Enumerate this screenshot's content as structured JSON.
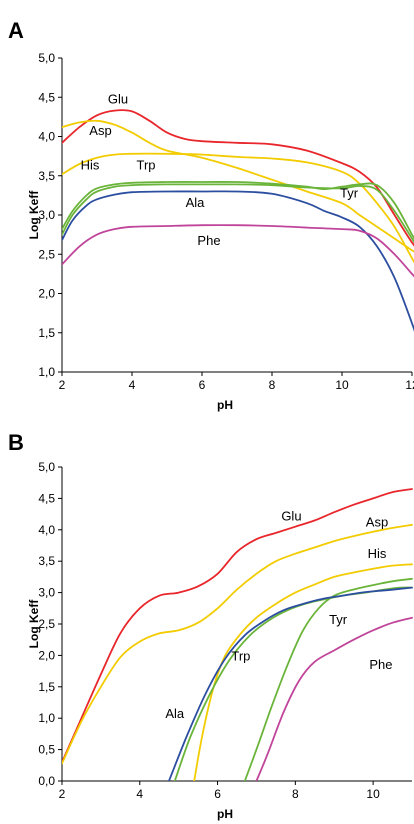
{
  "colors": {
    "red": "#e8262b",
    "yellow": "#f2cc00",
    "green": "#6ab43a",
    "blue": "#2c4ea0",
    "magenta": "#c0459a",
    "axis": "#000000"
  },
  "chart_data": [
    {
      "panel": "A",
      "type": "line",
      "xlabel": "pH",
      "ylabel": "Log Keff",
      "xlim": [
        2,
        12
      ],
      "ylim": [
        1.0,
        5.0
      ],
      "x_ticks": [
        "2",
        "4",
        "6",
        "8",
        "10",
        "12"
      ],
      "y_ticks": [
        "1,0",
        "1,5",
        "2,0",
        "2,5",
        "3,0",
        "3,5",
        "4,0",
        "4,5",
        "5,0"
      ],
      "series": [
        {
          "name": "Glu",
          "color": "red",
          "points": [
            [
              2,
              3.92
            ],
            [
              2.5,
              4.12
            ],
            [
              3,
              4.27
            ],
            [
              3.5,
              4.33
            ],
            [
              4,
              4.32
            ],
            [
              4.5,
              4.2
            ],
            [
              5,
              4.05
            ],
            [
              5.5,
              3.97
            ],
            [
              6,
              3.94
            ],
            [
              7,
              3.92
            ],
            [
              8,
              3.9
            ],
            [
              9,
              3.82
            ],
            [
              10,
              3.66
            ],
            [
              10.5,
              3.55
            ],
            [
              11,
              3.35
            ],
            [
              11.5,
              3.0
            ],
            [
              12,
              2.65
            ],
            [
              12.2,
              2.55
            ]
          ]
        },
        {
          "name": "Asp",
          "color": "yellow",
          "points": [
            [
              2,
              4.12
            ],
            [
              2.5,
              4.18
            ],
            [
              3,
              4.2
            ],
            [
              3.5,
              4.15
            ],
            [
              4,
              4.05
            ],
            [
              4.5,
              3.92
            ],
            [
              5,
              3.82
            ],
            [
              6,
              3.73
            ],
            [
              7,
              3.6
            ],
            [
              8,
              3.45
            ],
            [
              9,
              3.3
            ],
            [
              10,
              3.15
            ],
            [
              10.5,
              3.0
            ],
            [
              11,
              2.85
            ],
            [
              11.5,
              2.7
            ],
            [
              12,
              2.55
            ],
            [
              12.2,
              2.5
            ]
          ]
        },
        {
          "name": "His",
          "color": "yellow",
          "points": [
            [
              2,
              3.52
            ],
            [
              2.5,
              3.65
            ],
            [
              3,
              3.73
            ],
            [
              3.5,
              3.77
            ],
            [
              4,
              3.78
            ],
            [
              5,
              3.78
            ],
            [
              6,
              3.77
            ],
            [
              7,
              3.74
            ],
            [
              8,
              3.72
            ],
            [
              9,
              3.67
            ],
            [
              10,
              3.55
            ],
            [
              10.5,
              3.4
            ],
            [
              11,
              3.15
            ],
            [
              11.5,
              2.85
            ],
            [
              12,
              2.45
            ],
            [
              12.2,
              2.3
            ]
          ]
        },
        {
          "name": "Trp",
          "color": "green",
          "points": [
            [
              2,
              2.82
            ],
            [
              2.3,
              3.05
            ],
            [
              2.7,
              3.25
            ],
            [
              3,
              3.34
            ],
            [
              3.5,
              3.39
            ],
            [
              4,
              3.41
            ],
            [
              5,
              3.42
            ],
            [
              6,
              3.42
            ],
            [
              7,
              3.42
            ],
            [
              8,
              3.4
            ],
            [
              9,
              3.36
            ],
            [
              9.5,
              3.33
            ],
            [
              10,
              3.36
            ],
            [
              10.5,
              3.39
            ],
            [
              11,
              3.38
            ],
            [
              11.5,
              3.15
            ],
            [
              12,
              2.75
            ],
            [
              12.2,
              2.6
            ]
          ]
        },
        {
          "name": "Tyr",
          "color": "green",
          "points": [
            [
              2,
              2.75
            ],
            [
              2.3,
              3.0
            ],
            [
              2.7,
              3.2
            ],
            [
              3,
              3.3
            ],
            [
              3.5,
              3.36
            ],
            [
              4,
              3.38
            ],
            [
              5,
              3.39
            ],
            [
              6,
              3.39
            ],
            [
              7,
              3.39
            ],
            [
              8,
              3.38
            ],
            [
              9,
              3.35
            ],
            [
              10,
              3.34
            ],
            [
              10.5,
              3.37
            ],
            [
              11,
              3.32
            ],
            [
              11.5,
              3.05
            ],
            [
              12,
              2.7
            ],
            [
              12.2,
              2.55
            ]
          ]
        },
        {
          "name": "Ala",
          "color": "blue",
          "points": [
            [
              2,
              2.68
            ],
            [
              2.3,
              2.93
            ],
            [
              2.7,
              3.12
            ],
            [
              3,
              3.2
            ],
            [
              3.5,
              3.26
            ],
            [
              4,
              3.29
            ],
            [
              5,
              3.3
            ],
            [
              6,
              3.3
            ],
            [
              7,
              3.3
            ],
            [
              8,
              3.27
            ],
            [
              9,
              3.15
            ],
            [
              9.5,
              3.05
            ],
            [
              10,
              2.97
            ],
            [
              10.5,
              2.85
            ],
            [
              11,
              2.6
            ],
            [
              11.5,
              2.2
            ],
            [
              12,
              1.62
            ],
            [
              12.2,
              1.35
            ]
          ]
        },
        {
          "name": "Phe",
          "color": "magenta",
          "points": [
            [
              2,
              2.37
            ],
            [
              2.5,
              2.6
            ],
            [
              3,
              2.75
            ],
            [
              3.5,
              2.82
            ],
            [
              4,
              2.85
            ],
            [
              5,
              2.86
            ],
            [
              6,
              2.87
            ],
            [
              7,
              2.87
            ],
            [
              8,
              2.86
            ],
            [
              9,
              2.84
            ],
            [
              10,
              2.82
            ],
            [
              10.5,
              2.8
            ],
            [
              11,
              2.7
            ],
            [
              11.5,
              2.5
            ],
            [
              12,
              2.25
            ],
            [
              12.2,
              2.15
            ]
          ]
        }
      ],
      "labels": [
        {
          "text": "Glu",
          "x": 3.6,
          "y": 4.42
        },
        {
          "text": "Asp",
          "x": 3.1,
          "y": 4.02
        },
        {
          "text": "His",
          "x": 2.8,
          "y": 3.58
        },
        {
          "text": "Trp",
          "x": 4.4,
          "y": 3.58
        },
        {
          "text": "Tyr",
          "x": 10.2,
          "y": 3.22
        },
        {
          "text": "Ala",
          "x": 5.8,
          "y": 3.1
        },
        {
          "text": "Phe",
          "x": 6.2,
          "y": 2.62
        }
      ]
    },
    {
      "panel": "B",
      "type": "line",
      "xlabel": "pH",
      "ylabel": "Log Keff",
      "xlim": [
        2,
        11
      ],
      "ylim": [
        0.0,
        5.0
      ],
      "x_ticks": [
        "2",
        "4",
        "6",
        "8",
        "10"
      ],
      "y_ticks": [
        "0,0",
        "0,5",
        "1,0",
        "1,5",
        "2,0",
        "2,5",
        "3,0",
        "3,5",
        "4,0",
        "4,5",
        "5,0"
      ],
      "series": [
        {
          "name": "Glu",
          "color": "red",
          "points": [
            [
              2,
              0.3
            ],
            [
              2.5,
              1.0
            ],
            [
              3,
              1.7
            ],
            [
              3.5,
              2.35
            ],
            [
              4,
              2.75
            ],
            [
              4.5,
              2.95
            ],
            [
              5,
              3.0
            ],
            [
              5.5,
              3.1
            ],
            [
              6,
              3.3
            ],
            [
              6.5,
              3.65
            ],
            [
              7,
              3.85
            ],
            [
              7.5,
              3.95
            ],
            [
              8,
              4.05
            ],
            [
              8.5,
              4.15
            ],
            [
              9,
              4.28
            ],
            [
              9.5,
              4.4
            ],
            [
              10,
              4.5
            ],
            [
              10.5,
              4.6
            ],
            [
              11,
              4.65
            ]
          ]
        },
        {
          "name": "Asp",
          "color": "yellow",
          "points": [
            [
              2,
              0.28
            ],
            [
              2.5,
              0.95
            ],
            [
              3,
              1.5
            ],
            [
              3.5,
              1.97
            ],
            [
              4,
              2.22
            ],
            [
              4.5,
              2.35
            ],
            [
              5,
              2.4
            ],
            [
              5.5,
              2.52
            ],
            [
              6,
              2.75
            ],
            [
              6.5,
              3.05
            ],
            [
              7,
              3.3
            ],
            [
              7.5,
              3.5
            ],
            [
              8,
              3.62
            ],
            [
              8.5,
              3.72
            ],
            [
              9,
              3.82
            ],
            [
              9.5,
              3.9
            ],
            [
              10,
              3.97
            ],
            [
              10.5,
              4.03
            ],
            [
              11,
              4.08
            ]
          ]
        },
        {
          "name": "His",
          "color": "yellow",
          "points": [
            [
              5.4,
              0.0
            ],
            [
              5.6,
              0.7
            ],
            [
              5.9,
              1.5
            ],
            [
              6.2,
              2.0
            ],
            [
              6.6,
              2.35
            ],
            [
              7,
              2.6
            ],
            [
              7.5,
              2.82
            ],
            [
              8,
              3.0
            ],
            [
              8.5,
              3.13
            ],
            [
              9,
              3.25
            ],
            [
              9.5,
              3.32
            ],
            [
              10,
              3.38
            ],
            [
              10.5,
              3.43
            ],
            [
              11,
              3.45
            ]
          ]
        },
        {
          "name": "Trp",
          "color": "green",
          "points": [
            [
              4.9,
              0.0
            ],
            [
              5.3,
              0.7
            ],
            [
              5.8,
              1.38
            ],
            [
              6.3,
              1.92
            ],
            [
              6.8,
              2.3
            ],
            [
              7.3,
              2.55
            ],
            [
              7.8,
              2.72
            ],
            [
              8.3,
              2.83
            ],
            [
              8.8,
              2.9
            ],
            [
              9.3,
              2.96
            ],
            [
              9.8,
              3.0
            ],
            [
              10.3,
              3.05
            ],
            [
              10.7,
              3.08
            ],
            [
              11,
              3.08
            ]
          ]
        },
        {
          "name": "Tyr",
          "color": "green",
          "points": [
            [
              6.7,
              0.0
            ],
            [
              7,
              0.5
            ],
            [
              7.4,
              1.2
            ],
            [
              7.8,
              1.85
            ],
            [
              8.2,
              2.4
            ],
            [
              8.6,
              2.75
            ],
            [
              9,
              2.95
            ],
            [
              9.5,
              3.05
            ],
            [
              10,
              3.12
            ],
            [
              10.5,
              3.18
            ],
            [
              11,
              3.22
            ]
          ]
        },
        {
          "name": "Ala",
          "color": "blue",
          "points": [
            [
              4.75,
              0.0
            ],
            [
              5.2,
              0.7
            ],
            [
              5.7,
              1.4
            ],
            [
              6.2,
              1.95
            ],
            [
              6.7,
              2.32
            ],
            [
              7.2,
              2.55
            ],
            [
              7.7,
              2.72
            ],
            [
              8.2,
              2.82
            ],
            [
              8.7,
              2.9
            ],
            [
              9.2,
              2.95
            ],
            [
              9.7,
              3.0
            ],
            [
              10.2,
              3.03
            ],
            [
              10.7,
              3.06
            ],
            [
              11,
              3.08
            ]
          ]
        },
        {
          "name": "Phe",
          "color": "magenta",
          "points": [
            [
              7,
              0.0
            ],
            [
              7.3,
              0.45
            ],
            [
              7.7,
              1.1
            ],
            [
              8.1,
              1.6
            ],
            [
              8.5,
              1.9
            ],
            [
              9,
              2.08
            ],
            [
              9.5,
              2.25
            ],
            [
              10,
              2.4
            ],
            [
              10.5,
              2.52
            ],
            [
              11,
              2.6
            ]
          ]
        }
      ],
      "labels": [
        {
          "text": "Glu",
          "x": 7.9,
          "y": 4.15
        },
        {
          "text": "Asp",
          "x": 10.1,
          "y": 4.05
        },
        {
          "text": "His",
          "x": 10.1,
          "y": 3.55
        },
        {
          "text": "Tyr",
          "x": 9.1,
          "y": 2.5
        },
        {
          "text": "Trp",
          "x": 6.6,
          "y": 1.92
        },
        {
          "text": "Phe",
          "x": 10.2,
          "y": 1.78
        },
        {
          "text": "Ala",
          "x": 4.9,
          "y": 1.0
        }
      ]
    }
  ]
}
